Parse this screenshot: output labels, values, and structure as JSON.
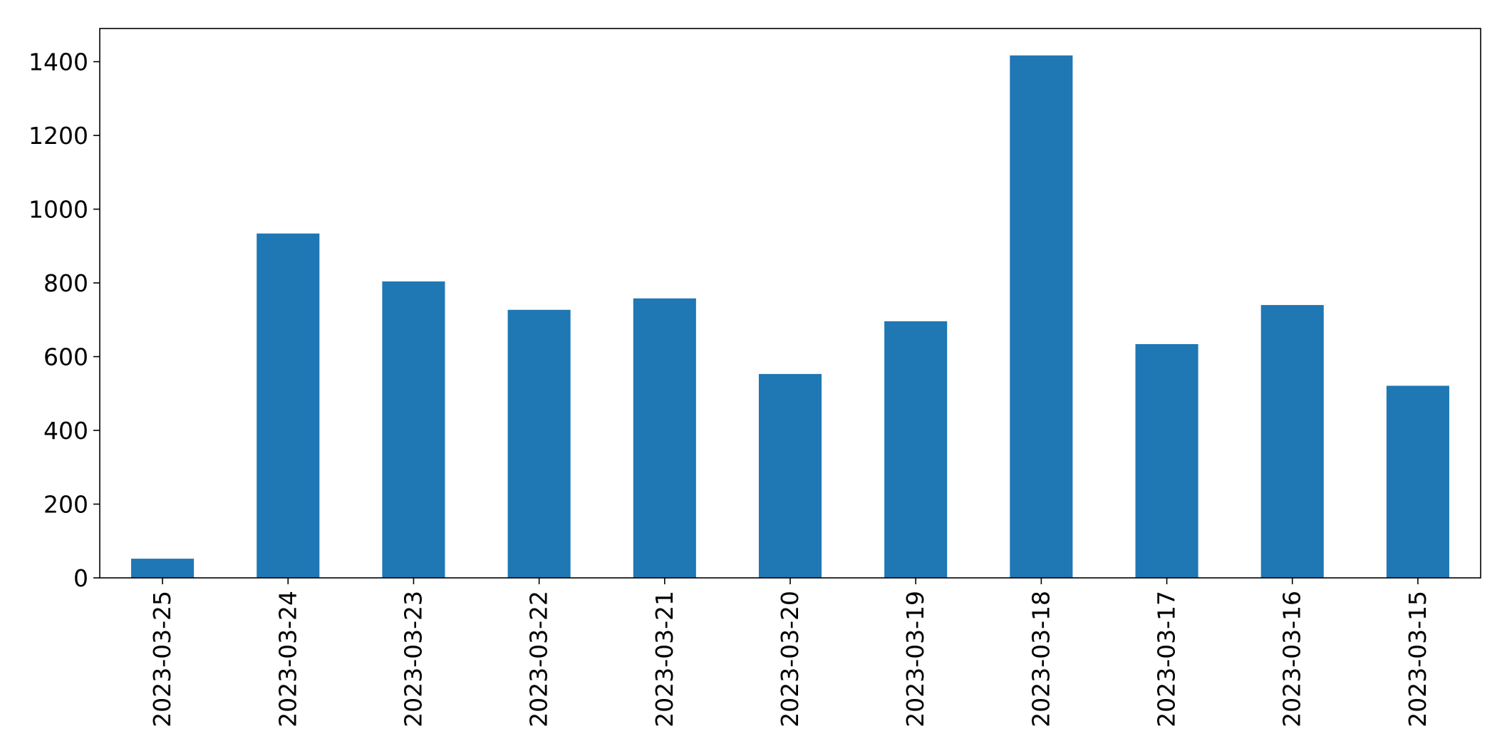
{
  "chart_data": {
    "type": "bar",
    "title": "",
    "xlabel": "",
    "ylabel": "",
    "categories": [
      "2023-03-25",
      "2023-03-24",
      "2023-03-23",
      "2023-03-22",
      "2023-03-21",
      "2023-03-20",
      "2023-03-19",
      "2023-03-18",
      "2023-03-17",
      "2023-03-16",
      "2023-03-15"
    ],
    "series": [
      {
        "values": [
          52,
          934,
          804,
          727,
          758,
          553,
          696,
          1417,
          634,
          740,
          521
        ]
      }
    ],
    "ylim": [
      0,
      1490
    ],
    "yticks": [
      0,
      200,
      400,
      600,
      800,
      1000,
      1200,
      1400
    ],
    "grid": false,
    "legend": "none",
    "colors": {
      "bar": "#1f77b4",
      "axis": "#000000",
      "background": "#ffffff"
    }
  }
}
